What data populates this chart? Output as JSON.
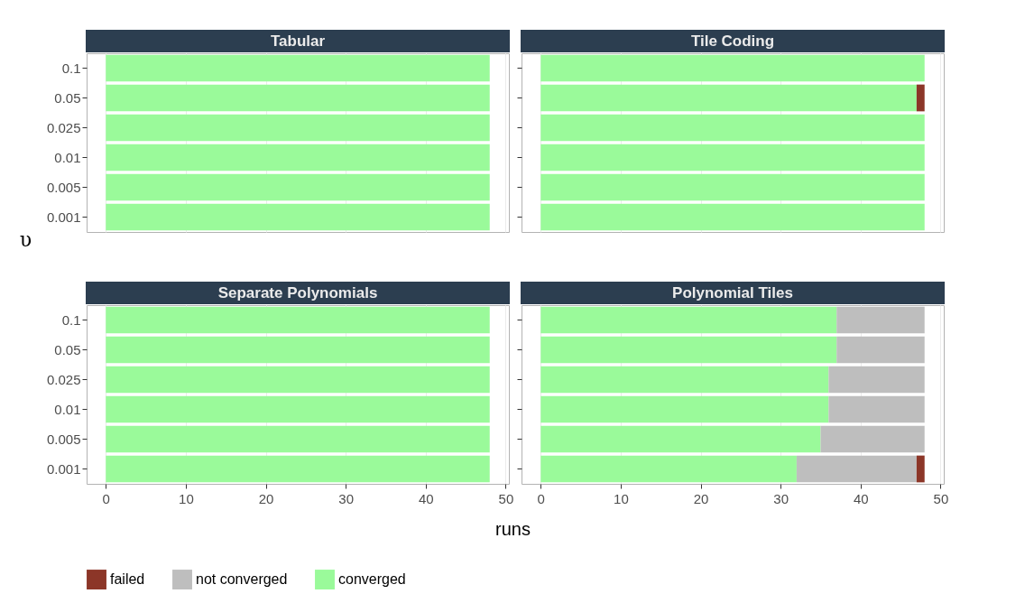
{
  "chart_data": [
    {
      "type": "bar",
      "orientation": "horizontal",
      "stacked": true,
      "title": "Tabular",
      "ylabel": "υ",
      "categories": [
        "0.1",
        "0.05",
        "0.025",
        "0.01",
        "0.005",
        "0.001"
      ],
      "xlim": [
        -2.4,
        50.4
      ],
      "xticks": [
        0,
        10,
        20,
        30,
        40,
        50
      ],
      "grid": "x",
      "legend": "bottom",
      "tick_labels": "y",
      "series": [
        {
          "name": "converged",
          "color": "#9afa9a",
          "values": [
            48,
            48,
            48,
            48,
            48,
            48
          ]
        }
      ]
    },
    {
      "type": "bar",
      "orientation": "horizontal",
      "stacked": true,
      "title": "Tile Coding",
      "categories": [
        "0.1",
        "0.05",
        "0.025",
        "0.01",
        "0.005",
        "0.001"
      ],
      "xlim": [
        -2.4,
        50.4
      ],
      "xticks": [
        0,
        10,
        20,
        30,
        40,
        50
      ],
      "grid": "x",
      "legend": "bottom",
      "tick_labels": false,
      "series": [
        {
          "name": "converged",
          "color": "#9afa9a",
          "values": [
            48,
            47,
            48,
            48,
            48,
            48
          ]
        },
        {
          "name": "failed",
          "color": "#8c3628",
          "values": [
            null,
            1,
            null,
            null,
            null,
            null
          ]
        }
      ]
    },
    {
      "type": "bar",
      "orientation": "horizontal",
      "stacked": true,
      "title": "Separate Polynomials",
      "xlabel": "runs",
      "categories": [
        "0.1",
        "0.05",
        "0.025",
        "0.01",
        "0.005",
        "0.001"
      ],
      "xlim": [
        -2.4,
        50.4
      ],
      "xticks": [
        0,
        10,
        20,
        30,
        40,
        50
      ],
      "grid": "x",
      "legend": "bottom",
      "series": [
        {
          "name": "converged",
          "color": "#9afa9a",
          "values": [
            48,
            48,
            48,
            48,
            48,
            48
          ]
        }
      ]
    },
    {
      "type": "bar",
      "orientation": "horizontal",
      "stacked": true,
      "title": "Polynomial Tiles",
      "categories": [
        "0.1",
        "0.05",
        "0.025",
        "0.01",
        "0.005",
        "0.001"
      ],
      "xlim": [
        -2.4,
        50.4
      ],
      "xticks": [
        0,
        10,
        20,
        30,
        40,
        50
      ],
      "grid": "x",
      "legend": "bottom",
      "tick_labels": "x",
      "series": [
        {
          "name": "converged",
          "color": "#9afa9a",
          "values": [
            37,
            37,
            36,
            36,
            35,
            32
          ]
        },
        {
          "name": "not converged",
          "color": "#bebebe",
          "values": [
            11,
            11,
            12,
            12,
            13,
            15
          ]
        },
        {
          "name": "failed",
          "color": "#8c3628",
          "values": [
            null,
            null,
            null,
            null,
            null,
            1
          ]
        }
      ]
    }
  ]
}
